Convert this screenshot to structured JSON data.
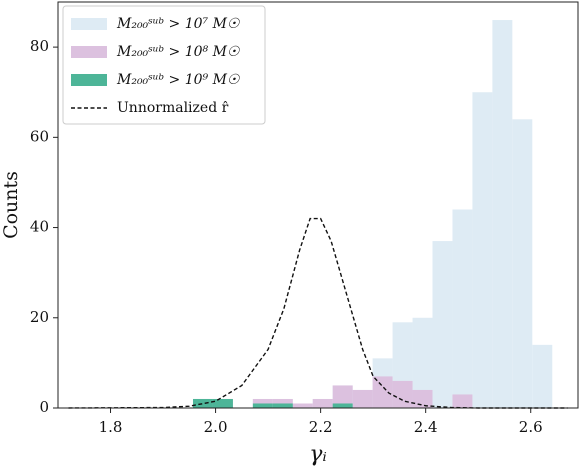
{
  "chart_data": {
    "type": "histogram",
    "x_label": "γᵢ",
    "y_label": "Counts",
    "xlim": [
      1.7,
      2.69
    ],
    "ylim": [
      0,
      90
    ],
    "xticks": [
      1.8,
      {
        "value": 2,
        "label": "2.0"
      },
      2.2,
      2.4,
      2.6
    ],
    "yticks": [
      0,
      20,
      40,
      60,
      80
    ],
    "legend": "upper left",
    "bins": [
      1.957,
      1.995,
      2.033,
      2.071,
      2.109,
      2.147,
      2.185,
      2.223,
      2.261,
      2.299,
      2.337,
      2.375,
      2.413,
      2.451,
      2.489,
      2.527,
      2.565,
      2.603,
      2.641
    ],
    "series": [
      {
        "name": "M₂₀₀ˢᵘᵇ > 10⁷ M☉",
        "color": "#deebf4",
        "values": [
          2,
          2,
          0,
          2,
          2,
          1,
          2,
          5,
          4,
          11,
          19,
          20,
          37,
          44,
          70,
          86,
          64,
          14
        ]
      },
      {
        "name": "M₂₀₀ˢᵘᵇ > 10⁸ M☉",
        "color": "#dcc1df",
        "values": [
          2,
          2,
          0,
          2,
          2,
          1,
          2,
          5,
          4,
          7,
          6,
          4,
          0,
          3,
          0,
          0,
          0,
          0
        ]
      },
      {
        "name": "M₂₀₀ˢᵘᵇ > 10⁹ M☉",
        "color": "#4db598",
        "values": [
          2,
          2,
          0,
          1,
          1,
          0,
          0,
          1,
          0,
          0,
          0,
          0,
          0,
          0,
          0,
          0,
          0,
          0
        ]
      }
    ],
    "curve": {
      "name": "Unnormalized r̂",
      "color": "#111111",
      "x": [
        1.72,
        1.9,
        1.95,
        2.0,
        2.05,
        2.1,
        2.13,
        2.16,
        2.18,
        2.2,
        2.22,
        2.25,
        2.28,
        2.3,
        2.33,
        2.36,
        2.4,
        2.45,
        2.5,
        2.67
      ],
      "values": [
        0,
        0.1,
        0.4,
        1.5,
        5,
        13,
        22,
        35,
        42,
        42,
        37,
        25,
        13,
        7,
        3.3,
        1.5,
        0.5,
        0.1,
        0,
        0
      ]
    }
  }
}
